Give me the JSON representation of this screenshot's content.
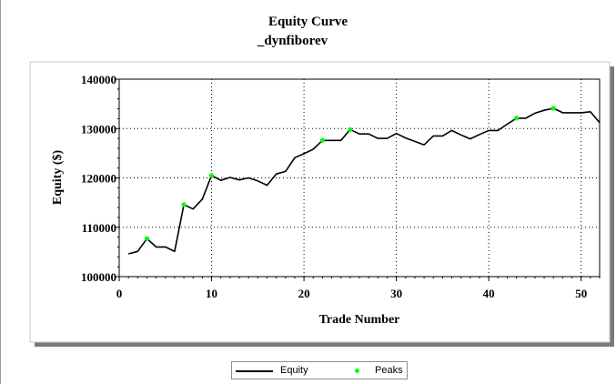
{
  "chart_data": {
    "type": "line",
    "title": "Equity Curve",
    "subtitle": "_dynfiborev",
    "xlabel": "Trade Number",
    "ylabel": "Equity ($)",
    "xlim": [
      0,
      52
    ],
    "ylim": [
      100000,
      140000
    ],
    "x_ticks": [
      0,
      10,
      20,
      30,
      40,
      50
    ],
    "y_ticks": [
      100000,
      110000,
      120000,
      130000,
      140000
    ],
    "x_tick_labels": [
      "0",
      "10",
      "20",
      "30",
      "40",
      "50"
    ],
    "y_tick_labels": [
      "100000",
      "110000",
      "120000",
      "130000",
      "140000"
    ],
    "grid": "dotted",
    "legend_position": "bottom-center",
    "series": [
      {
        "name": "Equity",
        "color": "#000000",
        "x": [
          1,
          2,
          3,
          4,
          5,
          6,
          7,
          8,
          9,
          10,
          11,
          12,
          13,
          14,
          15,
          16,
          17,
          18,
          19,
          20,
          21,
          22,
          23,
          24,
          25,
          26,
          27,
          28,
          29,
          30,
          31,
          32,
          33,
          34,
          35,
          36,
          37,
          38,
          39,
          40,
          41,
          42,
          43,
          44,
          45,
          46,
          47,
          48,
          49,
          50,
          51,
          52
        ],
        "y": [
          104600,
          105100,
          107700,
          106000,
          106000,
          105100,
          114600,
          113700,
          115700,
          120500,
          119500,
          120100,
          119600,
          120000,
          119400,
          118500,
          120800,
          121300,
          124100,
          124900,
          125800,
          127600,
          127600,
          127600,
          129800,
          128900,
          128900,
          128000,
          128000,
          129000,
          128100,
          127400,
          126700,
          128500,
          128500,
          129600,
          128700,
          127900,
          128800,
          129600,
          129600,
          130900,
          132100,
          132100,
          133100,
          133700,
          134100,
          133200,
          133200,
          133200,
          133400,
          131200
        ]
      },
      {
        "name": "Peaks",
        "color": "#00ff00",
        "x": [
          3,
          7,
          10,
          22,
          25,
          43,
          47
        ],
        "y": [
          107700,
          114600,
          120500,
          127600,
          129800,
          132100,
          134100
        ]
      }
    ]
  }
}
